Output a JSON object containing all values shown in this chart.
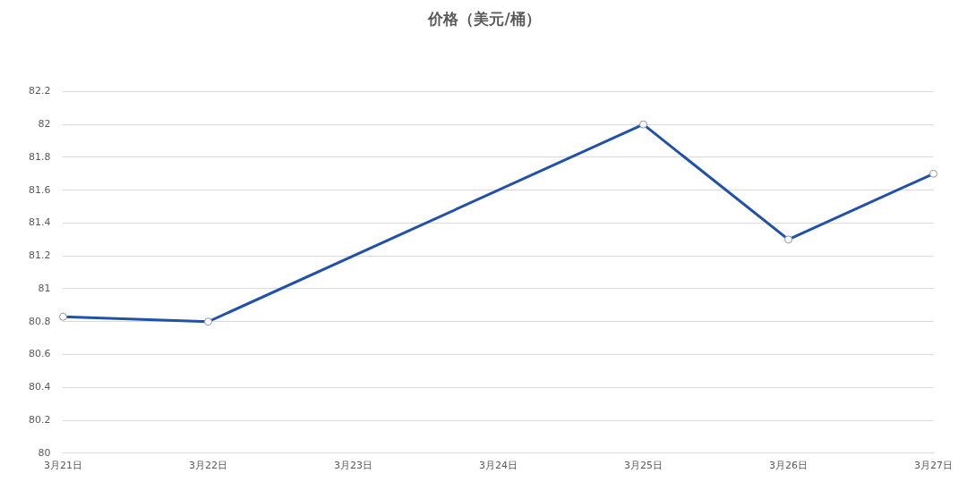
{
  "chart_data": {
    "type": "line",
    "title": "价格（美元/桶）",
    "categories": [
      "3月21日",
      "3月22日",
      "3月23日",
      "3月24日",
      "3月25日",
      "3月26日",
      "3月27日"
    ],
    "series": [
      {
        "color": "#2251a8",
        "values": [
          80.83,
          80.8,
          null,
          null,
          82,
          81.3,
          81.7
        ]
      }
    ],
    "ylim": [
      80,
      82.2
    ],
    "yticks": [
      80,
      80.2,
      80.4,
      80.6,
      80.8,
      81,
      81.2,
      81.4,
      81.6,
      81.8,
      82,
      82.2
    ],
    "grid": "y",
    "legend": false,
    "marker": "circle",
    "line_style": "solid"
  }
}
